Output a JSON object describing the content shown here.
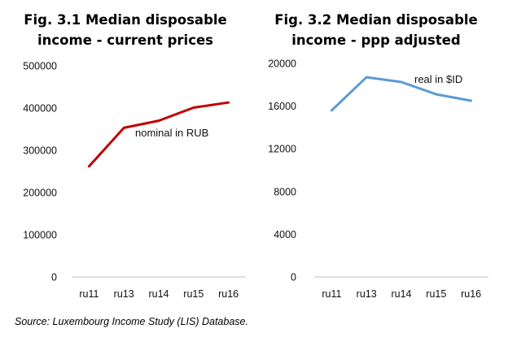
{
  "source": "Source: Luxembourg Income Study (LIS) Database.",
  "chart_data": [
    {
      "type": "line",
      "title_lines": [
        "Fig. 3.1 Median disposable",
        "income - current prices"
      ],
      "categories": [
        "ru11",
        "ru13",
        "ru14",
        "ru15",
        "ru16"
      ],
      "yticks": [
        "0",
        "100000",
        "200000",
        "300000",
        "400000",
        "500000"
      ],
      "ylim": [
        0,
        500000
      ],
      "series": [
        {
          "name": "nominal in RUB",
          "values": [
            262000,
            353000,
            370000,
            401000,
            413000
          ],
          "color": "#c00000"
        }
      ],
      "grid": false,
      "xlabel": "",
      "ylabel": ""
    },
    {
      "type": "line",
      "title_lines": [
        "Fig. 3.2 Median disposable",
        "income - ppp adjusted"
      ],
      "categories": [
        "ru11",
        "ru13",
        "ru14",
        "ru15",
        "ru16"
      ],
      "yticks": [
        "0",
        "4000",
        "8000",
        "12000",
        "16000",
        "20000"
      ],
      "ylim": [
        0,
        20000
      ],
      "series": [
        {
          "name": "real in $ID",
          "values": [
            15600,
            18700,
            18250,
            17100,
            16500
          ],
          "color": "#5b9bd5"
        }
      ],
      "grid": false,
      "xlabel": "",
      "ylabel": ""
    }
  ]
}
